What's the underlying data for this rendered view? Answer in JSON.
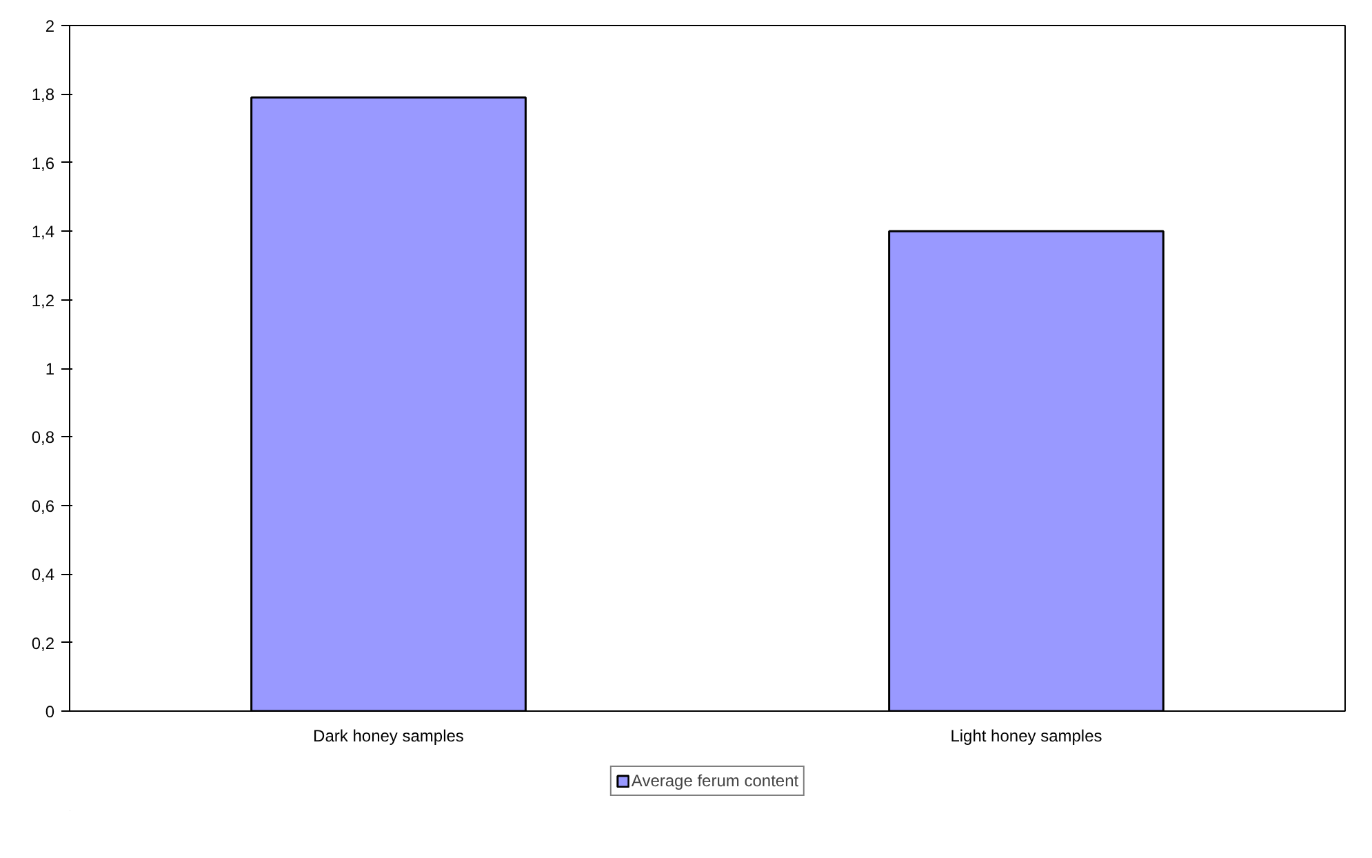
{
  "chart_data": {
    "type": "bar",
    "categories": [
      "Dark honey samples",
      "Light honey samples"
    ],
    "series": [
      {
        "name": "Average ferum content",
        "color": "#9999ff",
        "values": [
          1.79,
          1.4
        ]
      }
    ],
    "ylim": [
      0,
      2
    ],
    "yticks": [
      0,
      {
        "value": 0.2,
        "label": "0,2"
      },
      {
        "value": 0.4,
        "label": "0,4"
      },
      {
        "value": 0.6,
        "label": "0,6"
      },
      {
        "value": 0.8,
        "label": "0,8"
      },
      1,
      {
        "value": 1.2,
        "label": "1,2"
      },
      {
        "value": 1.4,
        "label": "1,4"
      },
      {
        "value": 1.6,
        "label": "1,6"
      },
      {
        "value": 1.8,
        "label": "1,8"
      },
      2
    ],
    "grid": false,
    "legend": "bottom"
  }
}
